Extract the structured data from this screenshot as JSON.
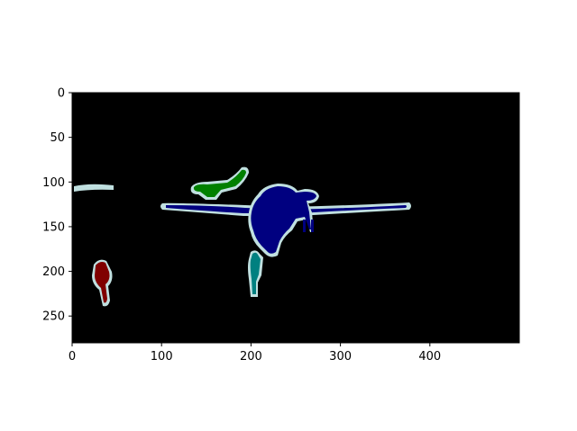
{
  "figure": {
    "colors": {
      "background": "#000000",
      "outline": "#c0e0e0",
      "airplane": "#000080",
      "bird": "#008000",
      "person_teal": "#008080",
      "person_red": "#800000"
    },
    "x_axis": {
      "ticks": [
        0,
        100,
        200,
        300,
        400
      ],
      "range": [
        0,
        500
      ]
    },
    "y_axis": {
      "ticks": [
        0,
        50,
        100,
        150,
        200,
        250
      ],
      "range": [
        0,
        280
      ],
      "inverted": true
    },
    "segments": [
      {
        "name": "airplane",
        "color_key": "airplane"
      },
      {
        "name": "bird",
        "color_key": "bird"
      },
      {
        "name": "person-teal",
        "color_key": "person_teal"
      },
      {
        "name": "person-red",
        "color_key": "person_red"
      },
      {
        "name": "ignore-strip",
        "color_key": "outline"
      }
    ]
  }
}
